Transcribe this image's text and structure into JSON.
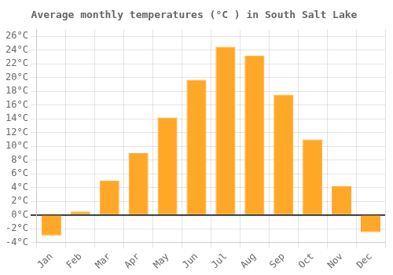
{
  "chart_data": {
    "type": "bar",
    "title": "Average monthly temperatures (°C ) in South Salt Lake",
    "categories": [
      "Jan",
      "Feb",
      "Mar",
      "Apr",
      "May",
      "Jun",
      "Jul",
      "Aug",
      "Sep",
      "Oct",
      "Nov",
      "Dec"
    ],
    "values": [
      -3.0,
      0.5,
      5.0,
      9.0,
      14.2,
      19.7,
      24.5,
      23.2,
      17.5,
      11.0,
      4.2,
      -2.5
    ],
    "color": "#FFA726",
    "ylim": [
      -4,
      27
    ],
    "yticks": [
      {
        "value": -4,
        "label": "-4°C"
      },
      {
        "value": -2,
        "label": "-2°C"
      },
      {
        "value": 0,
        "label": "0°C"
      },
      {
        "value": 2,
        "label": "2°C"
      },
      {
        "value": 4,
        "label": "4°C"
      },
      {
        "value": 6,
        "label": "6°C"
      },
      {
        "value": 8,
        "label": "8°C"
      },
      {
        "value": 10,
        "label": "10°C"
      },
      {
        "value": 12,
        "label": "12°C"
      },
      {
        "value": 14,
        "label": "14°C"
      },
      {
        "value": 16,
        "label": "16°C"
      },
      {
        "value": 18,
        "label": "18°C"
      },
      {
        "value": 20,
        "label": "20°C"
      },
      {
        "value": 22,
        "label": "22°C"
      },
      {
        "value": 24,
        "label": "24°C"
      },
      {
        "value": 26,
        "label": "26°C"
      }
    ],
    "grid": true
  }
}
